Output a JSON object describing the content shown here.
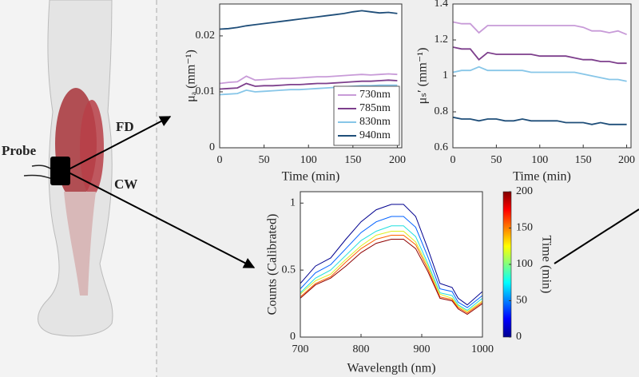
{
  "diagram": {
    "probe_label": "Probe",
    "fd_label": "FD",
    "cw_label": "CW"
  },
  "chart_data": [
    {
      "type": "line",
      "xlabel": "Time (min)",
      "ylabel": "μₐ (mm⁻¹)",
      "x": [
        0,
        10,
        20,
        30,
        40,
        50,
        60,
        70,
        80,
        90,
        100,
        110,
        120,
        130,
        140,
        150,
        160,
        170,
        180,
        190,
        200
      ],
      "xlim": [
        0,
        205
      ],
      "xticks": [
        0,
        50,
        100,
        150,
        200
      ],
      "ylim": [
        0,
        0.0257
      ],
      "yticks": [
        0,
        0.01,
        0.02
      ],
      "legend": "lower right",
      "series": [
        {
          "name": "730nm",
          "color": "#c89bd8",
          "values": [
            0.0115,
            0.0117,
            0.0118,
            0.0128,
            0.0121,
            0.0122,
            0.0123,
            0.0124,
            0.0124,
            0.0125,
            0.0126,
            0.0127,
            0.0127,
            0.0128,
            0.0129,
            0.013,
            0.0131,
            0.013,
            0.0131,
            0.0132,
            0.0131
          ]
        },
        {
          "name": "785nm",
          "color": "#7d3f8c",
          "values": [
            0.0105,
            0.0106,
            0.0107,
            0.0115,
            0.011,
            0.0111,
            0.0111,
            0.0112,
            0.0113,
            0.0113,
            0.0114,
            0.0115,
            0.0115,
            0.0116,
            0.0117,
            0.0118,
            0.0119,
            0.0119,
            0.012,
            0.0121,
            0.012
          ]
        },
        {
          "name": "830nm",
          "color": "#87c6e8",
          "values": [
            0.0095,
            0.0096,
            0.0097,
            0.0103,
            0.01,
            0.0101,
            0.0102,
            0.0103,
            0.0104,
            0.0104,
            0.0105,
            0.0106,
            0.0107,
            0.0108,
            0.0109,
            0.011,
            0.0111,
            0.0111,
            0.0112,
            0.0112,
            0.0112
          ]
        },
        {
          "name": "940nm",
          "color": "#1f4e79",
          "values": [
            0.0212,
            0.0213,
            0.0215,
            0.0218,
            0.022,
            0.0222,
            0.0224,
            0.0226,
            0.0228,
            0.023,
            0.0232,
            0.0234,
            0.0236,
            0.0238,
            0.024,
            0.0243,
            0.0245,
            0.0243,
            0.0241,
            0.0242,
            0.024
          ]
        }
      ]
    },
    {
      "type": "line",
      "xlabel": "Time (min)",
      "ylabel": "μₛ′ (mm⁻¹)",
      "x": [
        0,
        10,
        20,
        30,
        40,
        50,
        60,
        70,
        80,
        90,
        100,
        110,
        120,
        130,
        140,
        150,
        160,
        170,
        180,
        190,
        200
      ],
      "xlim": [
        0,
        205
      ],
      "xticks": [
        0,
        50,
        100,
        150,
        200
      ],
      "ylim": [
        0.6,
        1.4
      ],
      "yticks": [
        0.6,
        0.8,
        1,
        1.2,
        1.4
      ],
      "series": [
        {
          "color": "#c89bd8",
          "values": [
            1.3,
            1.29,
            1.29,
            1.24,
            1.28,
            1.28,
            1.28,
            1.28,
            1.28,
            1.28,
            1.28,
            1.28,
            1.28,
            1.28,
            1.28,
            1.27,
            1.25,
            1.25,
            1.24,
            1.25,
            1.23
          ]
        },
        {
          "color": "#7d3f8c",
          "values": [
            1.16,
            1.15,
            1.15,
            1.09,
            1.13,
            1.12,
            1.12,
            1.12,
            1.12,
            1.12,
            1.11,
            1.11,
            1.11,
            1.11,
            1.1,
            1.09,
            1.09,
            1.08,
            1.08,
            1.07,
            1.07
          ]
        },
        {
          "color": "#87c6e8",
          "values": [
            1.02,
            1.03,
            1.03,
            1.05,
            1.03,
            1.03,
            1.03,
            1.03,
            1.03,
            1.02,
            1.02,
            1.02,
            1.02,
            1.02,
            1.02,
            1.01,
            1.0,
            0.99,
            0.98,
            0.98,
            0.97
          ]
        },
        {
          "color": "#1f4e79",
          "values": [
            0.77,
            0.76,
            0.76,
            0.75,
            0.76,
            0.76,
            0.75,
            0.75,
            0.76,
            0.75,
            0.75,
            0.75,
            0.75,
            0.74,
            0.74,
            0.74,
            0.73,
            0.74,
            0.73,
            0.73,
            0.73
          ]
        }
      ]
    },
    {
      "type": "line",
      "xlabel": "Wavelength (nm)",
      "ylabel": "Counts (Calibrated)",
      "x": [
        700,
        725,
        750,
        775,
        800,
        825,
        850,
        870,
        890,
        910,
        930,
        950,
        960,
        975,
        1000
      ],
      "xlim": [
        700,
        1000
      ],
      "xticks": [
        700,
        800,
        900,
        1000
      ],
      "ylim": [
        0,
        1.085
      ],
      "yticks": [
        0,
        0.5,
        1
      ],
      "series": [
        {
          "color": "#00008f",
          "values": [
            0.4,
            0.53,
            0.59,
            0.73,
            0.86,
            0.95,
            0.99,
            0.99,
            0.9,
            0.66,
            0.4,
            0.37,
            0.29,
            0.24,
            0.34
          ]
        },
        {
          "color": "#0060ff",
          "values": [
            0.36,
            0.48,
            0.54,
            0.66,
            0.78,
            0.86,
            0.9,
            0.9,
            0.82,
            0.6,
            0.36,
            0.34,
            0.26,
            0.22,
            0.31
          ]
        },
        {
          "color": "#20dfdf",
          "values": [
            0.33,
            0.44,
            0.5,
            0.61,
            0.72,
            0.79,
            0.83,
            0.83,
            0.75,
            0.55,
            0.33,
            0.31,
            0.24,
            0.2,
            0.29
          ]
        },
        {
          "color": "#dfef20",
          "values": [
            0.32,
            0.42,
            0.47,
            0.58,
            0.68,
            0.76,
            0.79,
            0.79,
            0.71,
            0.53,
            0.32,
            0.29,
            0.23,
            0.19,
            0.27
          ]
        },
        {
          "color": "#ff6000",
          "values": [
            0.3,
            0.4,
            0.45,
            0.56,
            0.66,
            0.73,
            0.76,
            0.76,
            0.69,
            0.51,
            0.3,
            0.28,
            0.22,
            0.18,
            0.26
          ]
        },
        {
          "color": "#8f0000",
          "values": [
            0.29,
            0.39,
            0.44,
            0.53,
            0.63,
            0.7,
            0.73,
            0.73,
            0.66,
            0.49,
            0.29,
            0.27,
            0.21,
            0.17,
            0.25
          ]
        }
      ],
      "colorbar": {
        "label": "Time (min)",
        "lim": [
          0,
          200
        ],
        "ticks": [
          0,
          50,
          100,
          150,
          200
        ],
        "colors": [
          "#00008f",
          "#0000ff",
          "#0080ff",
          "#00ffff",
          "#80ff80",
          "#ffff00",
          "#ff8000",
          "#ff0000",
          "#800000"
        ]
      }
    }
  ]
}
